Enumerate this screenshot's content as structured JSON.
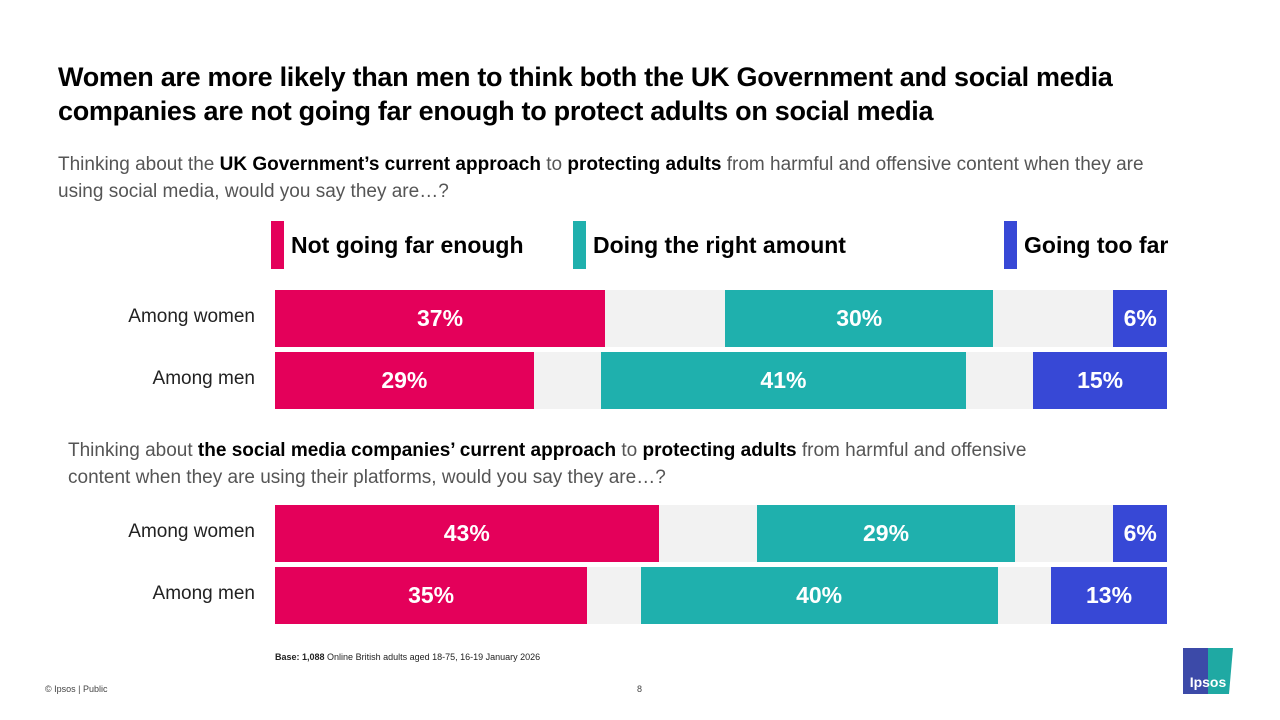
{
  "title": "Women are more likely than men to think both the UK Government and social media companies are not going far enough to protect adults on social media",
  "q1": {
    "a": "Thinking about the ",
    "b": "UK Government’s current approach",
    "c": " to ",
    "d": "protecting adults",
    "e": " from harmful and offensive content when they are using social media, would you say they are…?"
  },
  "q2": {
    "a": "Thinking about ",
    "b": "the social media companies’ current approach",
    "c": " to ",
    "d": "protecting adults",
    "e": " from harmful and offensive content when they are using their platforms, would you say they are…?"
  },
  "colors": {
    "not_far_enough": "#e4005a",
    "right_amount": "#1fb0ad",
    "too_far": "#3748d6",
    "gap": "#f2f2f2"
  },
  "chart_data": [
    {
      "type": "bar",
      "stacked": true,
      "title": "UK Government",
      "categories": [
        "Among women",
        "Among men"
      ],
      "series": [
        {
          "name": "Not going far enough",
          "values": [
            37,
            29
          ]
        },
        {
          "name": "Doing the right amount",
          "values": [
            30,
            41
          ]
        },
        {
          "name": "Going too far",
          "values": [
            6,
            15
          ]
        }
      ]
    },
    {
      "type": "bar",
      "stacked": true,
      "title": "Social media companies",
      "categories": [
        "Among women",
        "Among men"
      ],
      "series": [
        {
          "name": "Not going far enough",
          "values": [
            43,
            35
          ]
        },
        {
          "name": "Doing the right amount",
          "values": [
            29,
            40
          ]
        },
        {
          "name": "Going too far",
          "values": [
            6,
            13
          ]
        }
      ]
    }
  ],
  "legend": [
    "Not going far enough",
    "Doing the right amount",
    "Going too far"
  ],
  "base": {
    "label": "Base: 1,088",
    "text": " Online British adults aged 18-75, 16-19 January 2026"
  },
  "footer": {
    "copyright": "© Ipsos | Public",
    "page": "8"
  },
  "logo": "Ipsos"
}
